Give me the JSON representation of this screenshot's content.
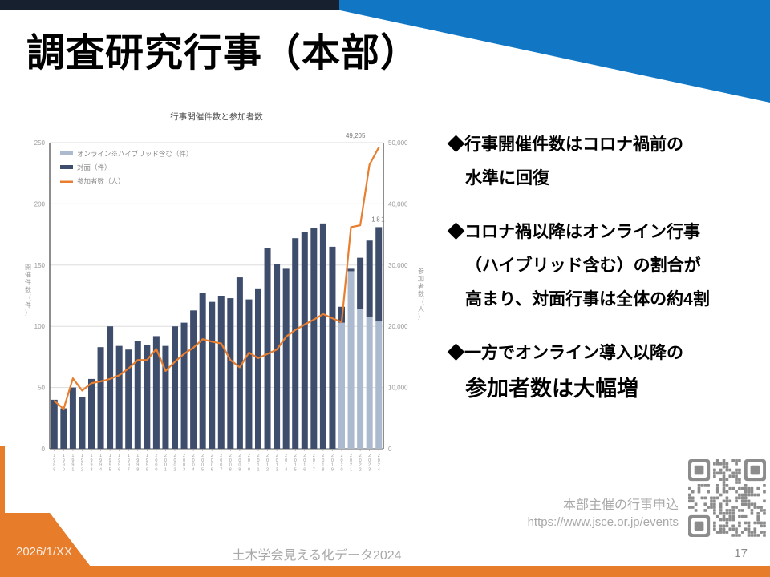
{
  "title": "調査研究行事（本部）",
  "chart_data": {
    "type": "bar",
    "subtype": "stacked bars + line (dual axis)",
    "title": "行事開催件数と参加者数",
    "grid": true,
    "legend_position": "top-left",
    "categories": [
      "1989",
      "1990",
      "1991",
      "1992",
      "1993",
      "1994",
      "1995",
      "1996",
      "1997",
      "1998",
      "1999",
      "2000",
      "2001",
      "2002",
      "2003",
      "2004",
      "2005",
      "2006",
      "2007",
      "2008",
      "2009",
      "2010",
      "2011",
      "2012",
      "2013",
      "2014",
      "2015",
      "2016",
      "2017",
      "2018",
      "2019",
      "2020",
      "2021",
      "2022",
      "2023",
      "2024"
    ],
    "bar_series": [
      {
        "name": "オンライン※ハイブリッド含む（件）",
        "axis": "left",
        "color": "#ABBACF",
        "values": [
          0,
          0,
          0,
          0,
          0,
          0,
          0,
          0,
          0,
          0,
          0,
          0,
          0,
          0,
          0,
          0,
          0,
          0,
          0,
          0,
          0,
          0,
          0,
          0,
          0,
          0,
          0,
          0,
          0,
          0,
          0,
          103,
          145,
          114,
          108,
          104
        ]
      },
      {
        "name": "対面（件）",
        "axis": "left",
        "color": "#3E4D6B",
        "values": [
          40,
          33,
          50,
          42,
          57,
          83,
          100,
          84,
          81,
          88,
          85,
          92,
          84,
          100,
          103,
          113,
          127,
          120,
          125,
          123,
          140,
          122,
          131,
          164,
          151,
          147,
          172,
          177,
          180,
          184,
          165,
          13,
          2,
          42,
          62,
          77
        ]
      }
    ],
    "line_series": {
      "name": "参加者数（人）",
      "axis": "right",
      "color": "#E87E2E",
      "values": [
        7800,
        6500,
        11500,
        9500,
        10700,
        11000,
        11400,
        12000,
        13100,
        14500,
        14500,
        16300,
        12700,
        14200,
        15500,
        16500,
        17900,
        17500,
        17200,
        14500,
        13300,
        15700,
        14800,
        15500,
        16200,
        18300,
        19400,
        20300,
        21100,
        22000,
        21300,
        20700,
        36200,
        36500,
        46400,
        49205
      ]
    },
    "left_axis": {
      "label": "開催件数（件）",
      "min": 0,
      "max": 250,
      "step": 50
    },
    "right_axis": {
      "label": "参加者数（人）",
      "min": 0,
      "max": 50000,
      "step": 5000
    },
    "annotations": [
      {
        "text": "49,205",
        "target": "line_last_point"
      },
      {
        "text": "181",
        "target": "bar_last_total"
      }
    ]
  },
  "bullets": [
    {
      "lines": [
        "◆行事開催件数はコロナ禍前の",
        "水準に回復"
      ]
    },
    {
      "lines": [
        "◆コロナ禍以降はオンライン行事",
        "（ハイブリッド含む）の割合が",
        "高まり、対面行事は全体の約4割"
      ]
    },
    {
      "lines": [
        "◆一方でオンライン導入以降の"
      ],
      "big_line": "参加者数は大幅増"
    }
  ],
  "qr_panel": {
    "caption": "本部主催の行事申込",
    "url": "https://www.jsce.or.jp/events",
    "icon": "qr-code-icon",
    "color": "#8C8C8C"
  },
  "footer": {
    "date": "2026/1/XX",
    "center": "土木学会見える化データ2024",
    "page": "17"
  },
  "colors": {
    "top_bar_navy": "#16202F",
    "top_wedge_blue": "#1177C5",
    "footer_orange": "#E77C2B",
    "bar_online": "#ABBACF",
    "bar_taimen": "#3E4D6B",
    "line_orange": "#E87E2E",
    "chart_text_gray": "#999999"
  }
}
